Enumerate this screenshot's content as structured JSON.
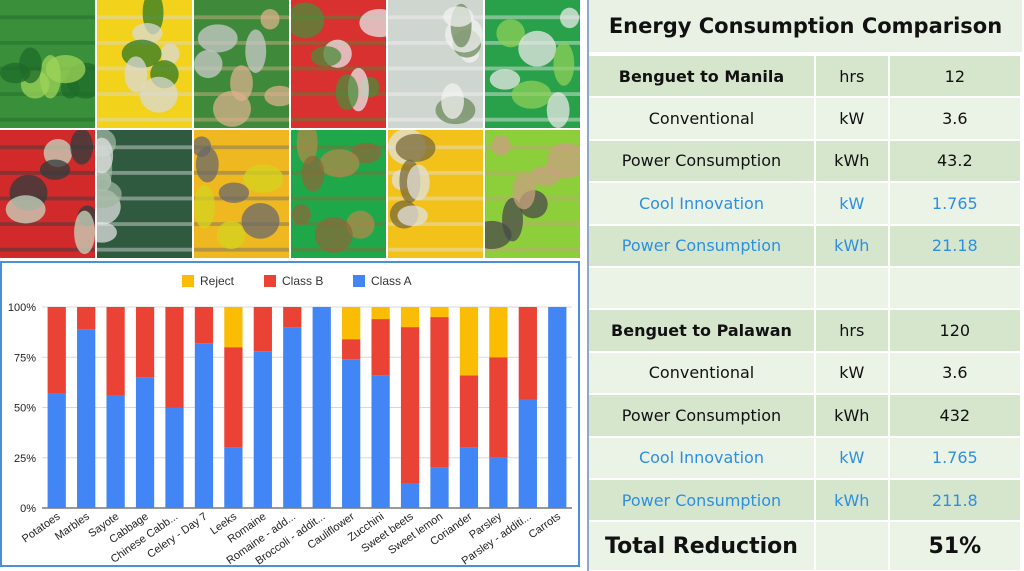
{
  "collage": {
    "photos": [
      {
        "name": "lettuce-crates-photo",
        "colors": [
          "#3a8f3a",
          "#9fd45a",
          "#1f6b2a"
        ]
      },
      {
        "name": "parsley-yellow-crate-photo",
        "colors": [
          "#f2d21a",
          "#2f7a24",
          "#d9d9d9"
        ]
      },
      {
        "name": "greens-in-hand-photo",
        "colors": [
          "#3f8a3a",
          "#c9c9c9",
          "#d9b08c"
        ]
      },
      {
        "name": "bagged-greens-red-crate-photo",
        "colors": [
          "#d93030",
          "#e6e6e6",
          "#4a8c3a"
        ]
      },
      {
        "name": "bagged-produce-photo",
        "colors": [
          "#cfd6d0",
          "#6e8a5e",
          "#f2f2f2"
        ]
      },
      {
        "name": "coriander-green-crate-photo",
        "colors": [
          "#29a04a",
          "#8ccf5a",
          "#e8e8e8"
        ]
      },
      {
        "name": "cabbage-red-crates-photo",
        "colors": [
          "#d22a2a",
          "#c8d8c0",
          "#2e3e3e"
        ]
      },
      {
        "name": "chinese-cabbage-photo",
        "colors": [
          "#2f5a40",
          "#9fb5a0",
          "#e0e0e0"
        ]
      },
      {
        "name": "sweet-lemon-crate-photo",
        "colors": [
          "#f0b820",
          "#d4d420",
          "#6a6a6a"
        ]
      },
      {
        "name": "potatoes-green-crate-photo",
        "colors": [
          "#1fa84a",
          "#b08a4a",
          "#8a6a3a"
        ]
      },
      {
        "name": "bagged-sayote-yellow-crate-photo",
        "colors": [
          "#f2c21a",
          "#7a6a3a",
          "#e0e0e0"
        ]
      },
      {
        "name": "sayote-in-hand-photo",
        "colors": [
          "#8ccf3a",
          "#4a4a4a",
          "#c8a080"
        ]
      }
    ]
  },
  "chart_data": {
    "type": "bar",
    "stacked": true,
    "percent": true,
    "categories": [
      "Potatoes",
      "Marbles",
      "Sayote",
      "Cabbage",
      "Chinese Cabb...",
      "Celery - Day 7",
      "Leeks",
      "Romaine",
      "Romaine - add...",
      "Broccoli - addit...",
      "Cauliflower",
      "Zucchini",
      "Sweet beets",
      "Sweet lemon",
      "Coriander",
      "Parsley",
      "Parsley - additi...",
      "Carrots"
    ],
    "series": [
      {
        "name": "Class A",
        "color": "#4285f4",
        "values": [
          57,
          89,
          56,
          65,
          50,
          82,
          30,
          78,
          90,
          100,
          74,
          66,
          12,
          20,
          30,
          25,
          54,
          100
        ]
      },
      {
        "name": "Class B",
        "color": "#ea4335",
        "values": [
          43,
          11,
          44,
          35,
          50,
          18,
          50,
          22,
          10,
          0,
          10,
          28,
          78,
          75,
          36,
          50,
          46,
          0
        ]
      },
      {
        "name": "Reject",
        "color": "#fbbc04",
        "values": [
          0,
          0,
          0,
          0,
          0,
          0,
          20,
          0,
          0,
          0,
          16,
          6,
          10,
          5,
          34,
          25,
          0,
          0
        ]
      }
    ],
    "legend_order": [
      "Reject",
      "Class B",
      "Class A"
    ],
    "legend_position": "top",
    "yticks": [
      "0%",
      "25%",
      "50%",
      "75%",
      "100%"
    ],
    "ylim": [
      0,
      100
    ],
    "grid": true
  },
  "energy": {
    "title": "Energy Consumption Comparison",
    "rows": [
      {
        "label": "Benguet to Manila",
        "unit": "hrs",
        "value": "12"
      },
      {
        "label": "Conventional",
        "unit": "kW",
        "value": "3.6"
      },
      {
        "label": "Power Consumption",
        "unit": "kWh",
        "value": "43.2"
      },
      {
        "label": "Cool Innovation",
        "unit": "kW",
        "value": "1.765"
      },
      {
        "label": "Power Consumption",
        "unit": "kWh",
        "value": "21.18"
      },
      {
        "label": "",
        "unit": "",
        "value": ""
      },
      {
        "label": "Benguet to Palawan",
        "unit": "hrs",
        "value": "120"
      },
      {
        "label": "Conventional",
        "unit": "kW",
        "value": "3.6"
      },
      {
        "label": "Power Consumption",
        "unit": "kWh",
        "value": "432"
      },
      {
        "label": "Cool Innovation",
        "unit": "kW",
        "value": "1.765"
      },
      {
        "label": "Power Consumption",
        "unit": "kWh",
        "value": "211.8"
      }
    ],
    "total": {
      "label": "Total Reduction",
      "unit": "",
      "value": "51%"
    },
    "colors": {
      "highlight_text": "#2d8fe0",
      "row_dark": "#d6e6cd",
      "row_light": "#ebf3e6"
    }
  }
}
